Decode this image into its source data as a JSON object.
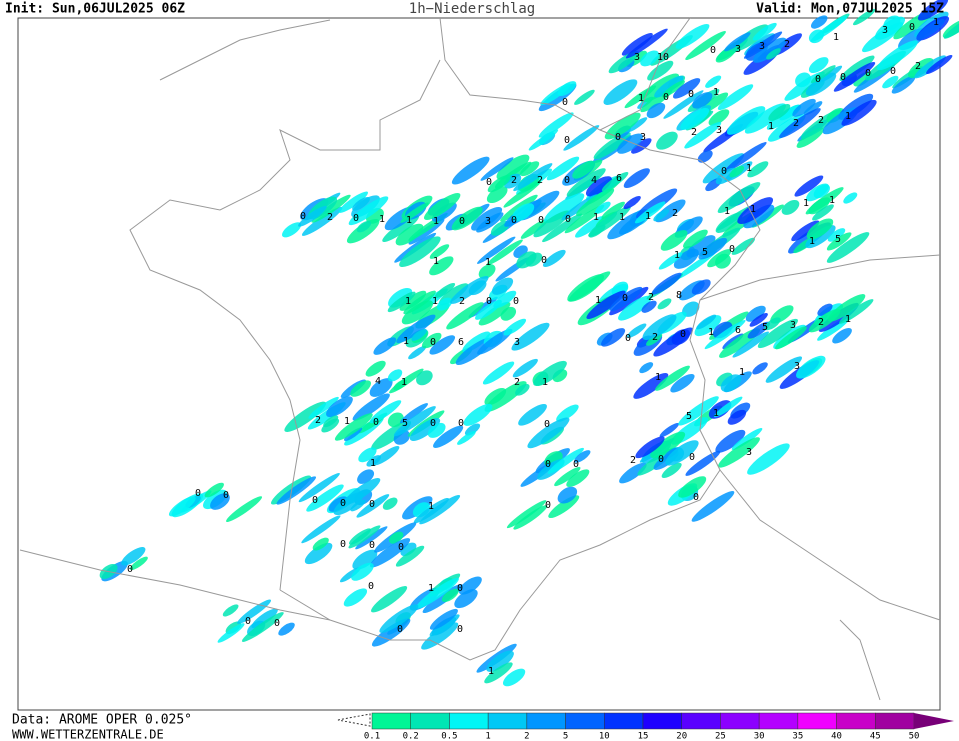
{
  "header": {
    "init": "Init: Sun,06JUL2025 06Z",
    "title": "1h−Niederschlag",
    "valid": "Valid: Mon,07JUL2025 15Z"
  },
  "footer": {
    "data_source": "Data: AROME OPER 0.025°",
    "website": "WWW.WETTERZENTRALE.DE"
  },
  "legend": {
    "labels": [
      0.1,
      0.2,
      0.5,
      1,
      2,
      5,
      10,
      15,
      20,
      25,
      30,
      35,
      40,
      45,
      50
    ],
    "colors": [
      "#00f596",
      "#00e6b4",
      "#00f5f5",
      "#00c8f5",
      "#0096ff",
      "#0064ff",
      "#0032ff",
      "#1e00ff",
      "#5a00ff",
      "#8c00ff",
      "#b400ff",
      "#f000ff",
      "#c800c8",
      "#a000a0",
      "#780078"
    ]
  },
  "map_labels": [
    3,
    10,
    0,
    3,
    3,
    2,
    1,
    3,
    0,
    1,
    0,
    0,
    0,
    0,
    2,
    0,
    1,
    0,
    0,
    1,
    0,
    0,
    3,
    2,
    3,
    1,
    2,
    2,
    1,
    0,
    2,
    2,
    0,
    4,
    6,
    0,
    1,
    0,
    2,
    0,
    1,
    1,
    1,
    0,
    3,
    0,
    0,
    0,
    1,
    1,
    1,
    2,
    1,
    1,
    1,
    1,
    1,
    1,
    0,
    1,
    5,
    0,
    1,
    5,
    1,
    1,
    2,
    0,
    0,
    1,
    0,
    2,
    8,
    0,
    2,
    0,
    1,
    6,
    5,
    3,
    2,
    1,
    1,
    0,
    6,
    3,
    4,
    1,
    2,
    1,
    1,
    1,
    3,
    2,
    1,
    0,
    5,
    0,
    0,
    0,
    5,
    1,
    1,
    0,
    0,
    2,
    0,
    0,
    3,
    0,
    0,
    0,
    0,
    0,
    1,
    0,
    0,
    0,
    0,
    0,
    0,
    0,
    1,
    0,
    0,
    0,
    0,
    0,
    1
  ]
}
